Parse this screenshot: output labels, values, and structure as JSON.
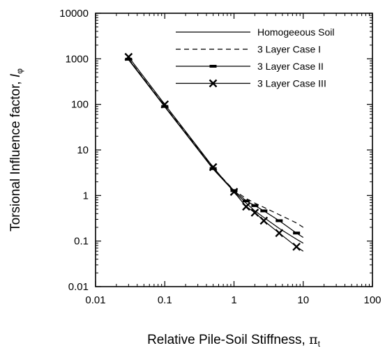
{
  "chart_data": {
    "type": "line",
    "xlabel": "Relative Pile-Soil Stiffness, ",
    "xlabel_symbol": "π",
    "xlabel_sub": "t",
    "ylabel": "Torsional Influence factor, ",
    "ylabel_symbol": "I",
    "ylabel_sub": "φ",
    "x_scale": "log",
    "y_scale": "log",
    "xlim": [
      0.01,
      100
    ],
    "ylim": [
      0.01,
      10000
    ],
    "x_ticks": [
      "0.01",
      "0.1",
      "1",
      "10",
      "100"
    ],
    "y_ticks": [
      "0.01",
      "0.1",
      "1",
      "10",
      "100",
      "1000",
      "10000"
    ],
    "x_tick_values": [
      0.01,
      0.1,
      1,
      10,
      100
    ],
    "y_tick_values": [
      0.01,
      0.1,
      1,
      10,
      100,
      1000,
      10000
    ],
    "grid": false,
    "legend_position": "top-right",
    "series": [
      {
        "name": "Homogeeous Soil",
        "style": "solid",
        "marker": "none",
        "points": [
          {
            "x": 0.03,
            "y": 950
          },
          {
            "x": 0.1,
            "y": 88
          },
          {
            "x": 0.5,
            "y": 3.8
          },
          {
            "x": 1.0,
            "y": 1.22
          },
          {
            "x": 1.5,
            "y": 0.68
          },
          {
            "x": 2.0,
            "y": 0.46
          },
          {
            "x": 2.7,
            "y": 0.33
          },
          {
            "x": 4.5,
            "y": 0.19
          },
          {
            "x": 8.0,
            "y": 0.11
          },
          {
            "x": 10.0,
            "y": 0.09
          }
        ]
      },
      {
        "name": "3 Layer Case I",
        "style": "dashed",
        "marker": "none",
        "points": [
          {
            "x": 0.03,
            "y": 1000
          },
          {
            "x": 0.1,
            "y": 92
          },
          {
            "x": 0.5,
            "y": 4.0
          },
          {
            "x": 1.0,
            "y": 1.3
          },
          {
            "x": 1.5,
            "y": 0.86
          },
          {
            "x": 2.0,
            "y": 0.68
          },
          {
            "x": 2.7,
            "y": 0.55
          },
          {
            "x": 4.5,
            "y": 0.38
          },
          {
            "x": 8.0,
            "y": 0.25
          },
          {
            "x": 10.0,
            "y": 0.2
          }
        ]
      },
      {
        "name": "3 Layer Case II",
        "style": "solid",
        "marker": "bar",
        "points": [
          {
            "x": 0.03,
            "y": 980
          },
          {
            "x": 0.1,
            "y": 90
          },
          {
            "x": 0.5,
            "y": 3.9
          },
          {
            "x": 1.0,
            "y": 1.28
          },
          {
            "x": 1.5,
            "y": 0.76
          },
          {
            "x": 2.0,
            "y": 0.6
          },
          {
            "x": 2.7,
            "y": 0.46
          },
          {
            "x": 4.5,
            "y": 0.28
          },
          {
            "x": 8.0,
            "y": 0.15
          },
          {
            "x": 10.0,
            "y": 0.12
          }
        ]
      },
      {
        "name": "3 Layer Case III",
        "style": "solid",
        "marker": "x",
        "points": [
          {
            "x": 0.03,
            "y": 1100
          },
          {
            "x": 0.1,
            "y": 100
          },
          {
            "x": 0.5,
            "y": 4.2
          },
          {
            "x": 1.0,
            "y": 1.2
          },
          {
            "x": 1.5,
            "y": 0.57
          },
          {
            "x": 2.0,
            "y": 0.42
          },
          {
            "x": 2.7,
            "y": 0.28
          },
          {
            "x": 4.5,
            "y": 0.15
          },
          {
            "x": 8.0,
            "y": 0.075
          },
          {
            "x": 10.0,
            "y": 0.06
          }
        ]
      }
    ]
  }
}
